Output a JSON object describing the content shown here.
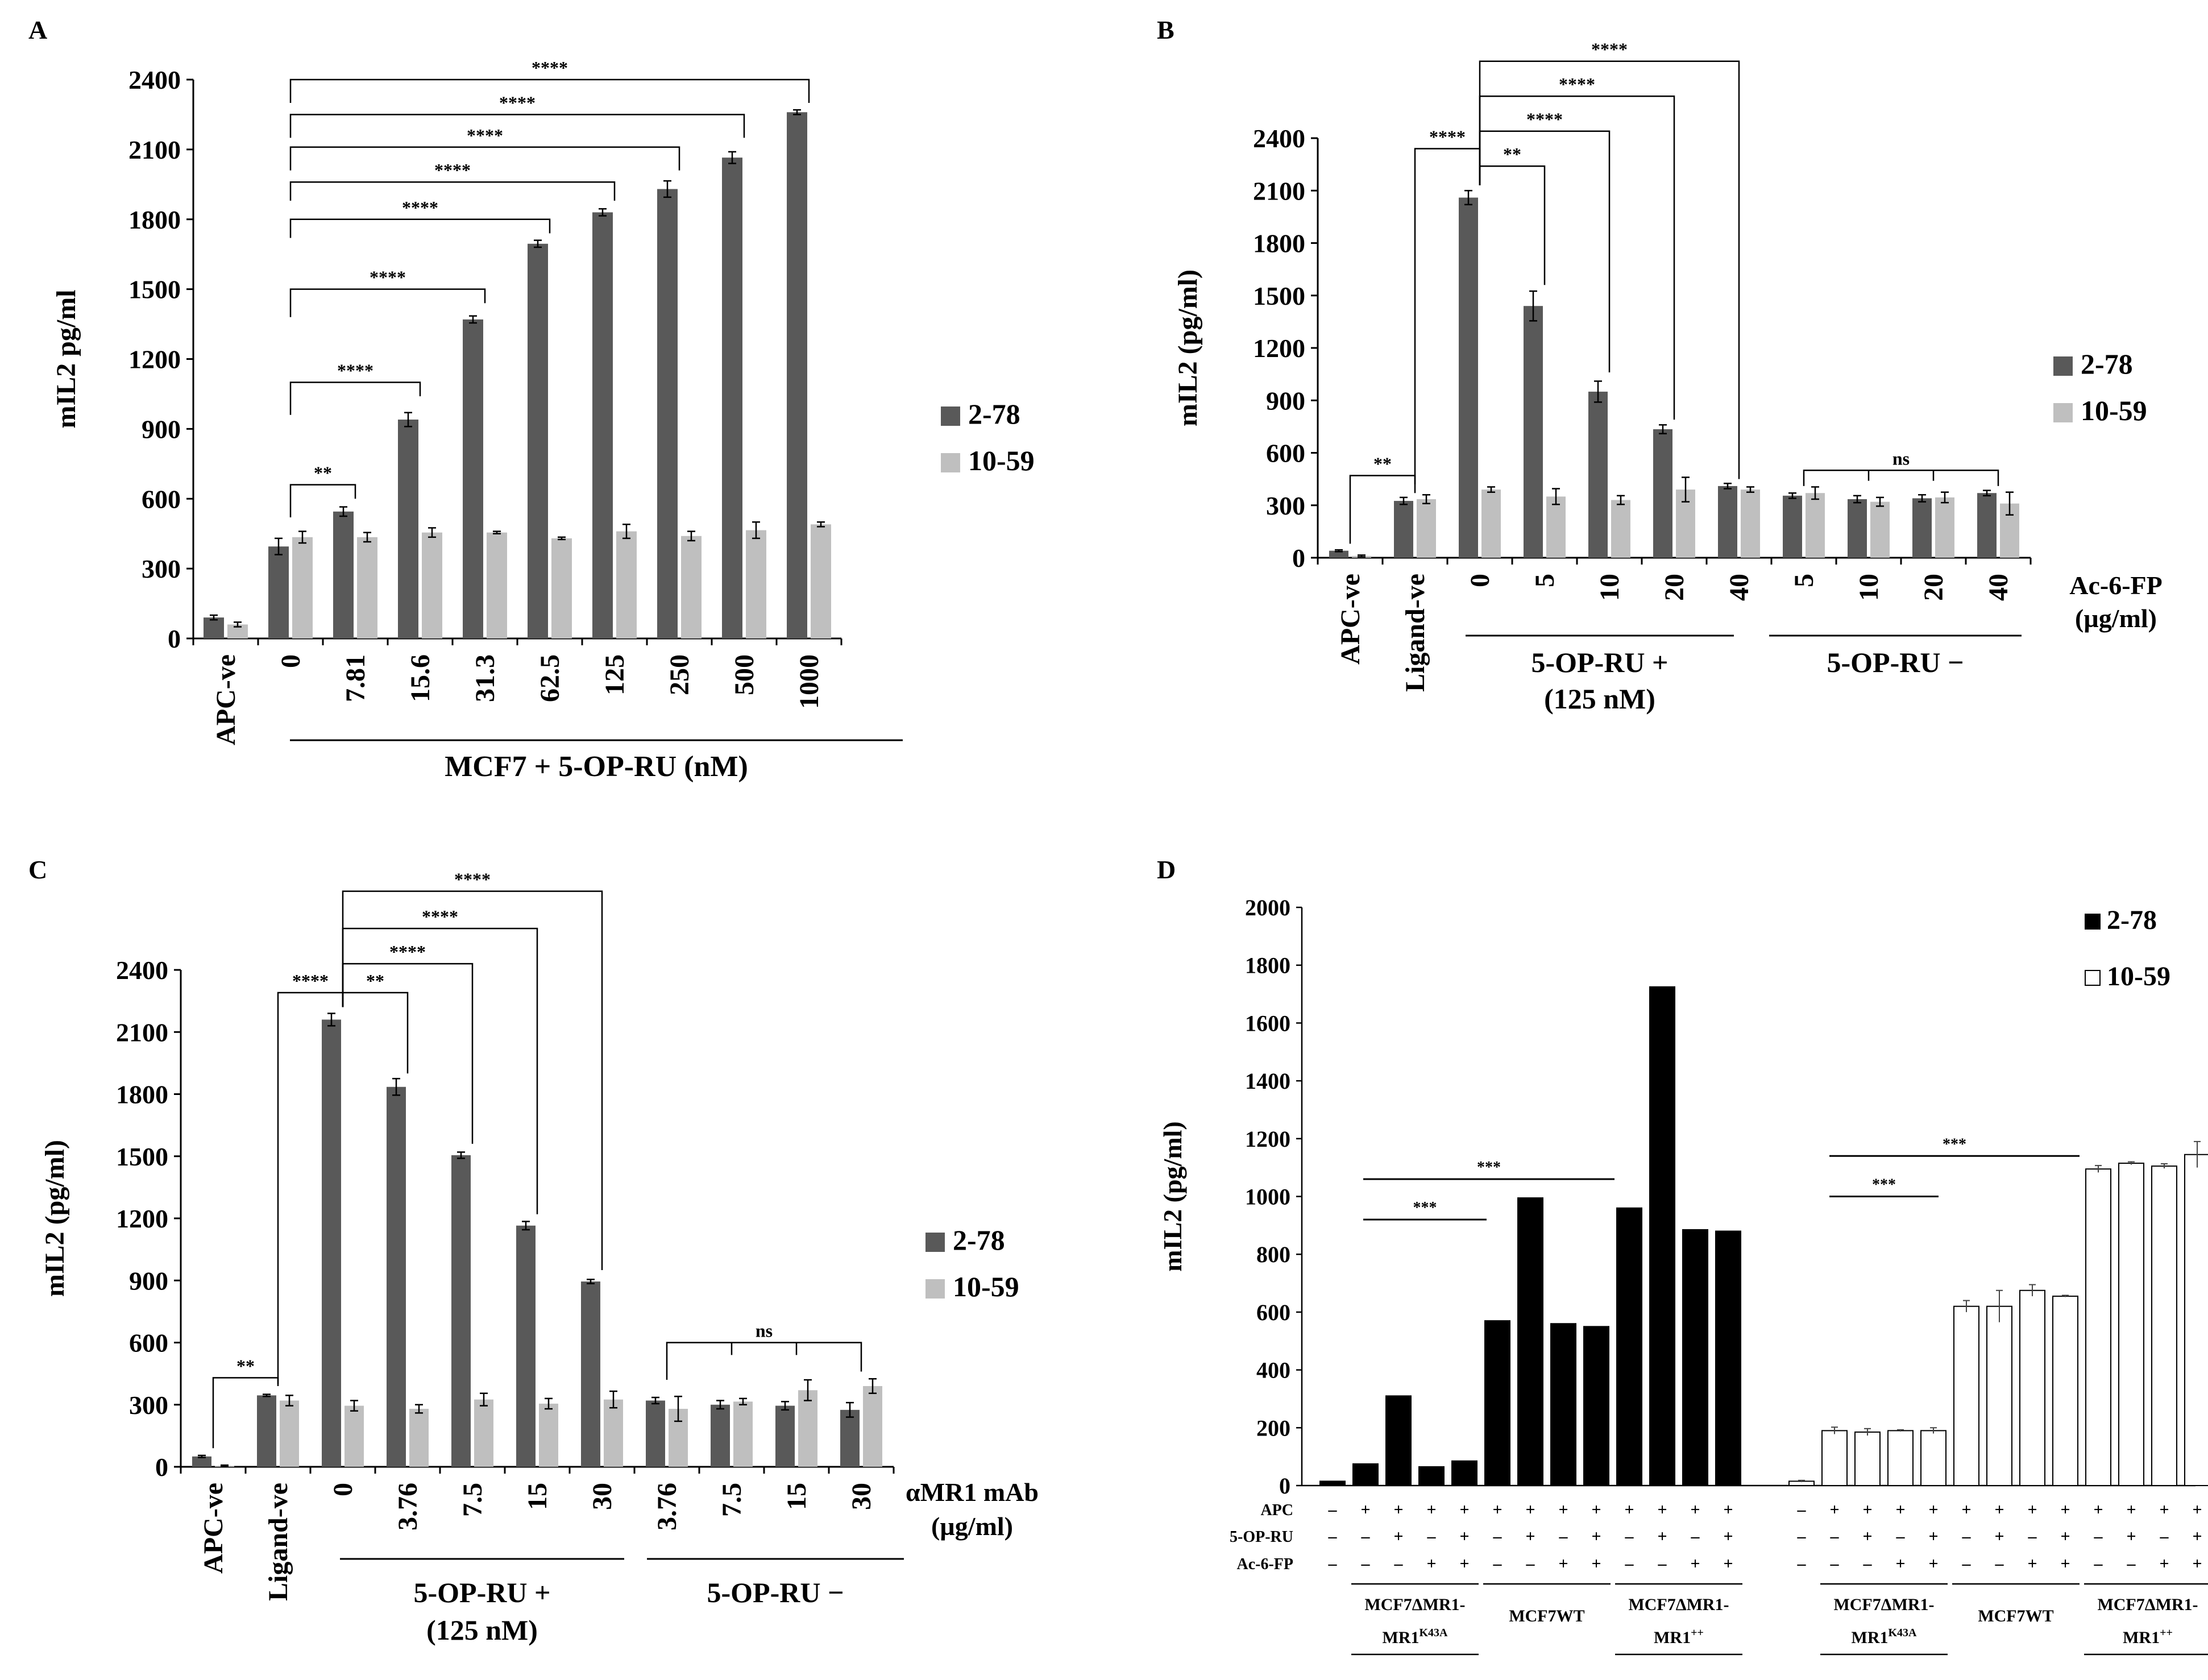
{
  "panels": {
    "A": {
      "letter": "A"
    },
    "B": {
      "letter": "B"
    },
    "C": {
      "letter": "C"
    },
    "D": {
      "letter": "D"
    }
  },
  "colors": {
    "dark_bar": "#595959",
    "light_bar": "#bfbfbf",
    "black_bar": "#000000",
    "white_bar": "#ffffff"
  },
  "chart_data": [
    {
      "panel": "A",
      "type": "bar",
      "ylabel": "mIL2 pg/ml",
      "ylim": [
        0,
        2400
      ],
      "yticks": [
        0,
        300,
        600,
        900,
        1200,
        1500,
        1800,
        2100,
        2400
      ],
      "categories": [
        "APC-ve",
        "0",
        "7.81",
        "15.6",
        "31.3",
        "62.5",
        "125",
        "250",
        "500",
        "1000"
      ],
      "group_label": "MCF7 + 5-OP-RU (nM)",
      "legend_position": "right",
      "series": [
        {
          "name": "2-78",
          "values": [
            90,
            395,
            545,
            940,
            1370,
            1695,
            1830,
            1930,
            2065,
            2260
          ],
          "errors": [
            10,
            35,
            20,
            30,
            15,
            15,
            15,
            35,
            25,
            10
          ]
        },
        {
          "name": "10-59",
          "values": [
            60,
            435,
            435,
            455,
            455,
            430,
            460,
            440,
            465,
            490
          ],
          "errors": [
            10,
            25,
            20,
            20,
            5,
            5,
            30,
            20,
            35,
            10
          ]
        }
      ],
      "brackets": [
        {
          "from": "0",
          "to": "7.81",
          "label": "**"
        },
        {
          "from": "0",
          "to": "15.6",
          "label": "****"
        },
        {
          "from": "0",
          "to": "31.3",
          "label": "****"
        },
        {
          "from": "0",
          "to": "62.5",
          "label": "****"
        },
        {
          "from": "0",
          "to": "125",
          "label": "****"
        },
        {
          "from": "0",
          "to": "250",
          "label": "****"
        },
        {
          "from": "0",
          "to": "500",
          "label": "****"
        },
        {
          "from": "0",
          "to": "1000",
          "label": "****"
        }
      ]
    },
    {
      "panel": "B",
      "type": "bar",
      "ylabel": "mIL2 (pg/ml)",
      "ylim": [
        0,
        2400
      ],
      "yticks": [
        0,
        300,
        600,
        900,
        1200,
        1500,
        1800,
        2100,
        2400
      ],
      "categories": [
        "APC-ve",
        "Ligand-ve",
        "0",
        "5",
        "10",
        "20",
        "40",
        "5",
        "10",
        "20",
        "40"
      ],
      "group_labels": [
        {
          "lines": [
            "5-OP-RU +",
            "(125 nM)"
          ]
        },
        {
          "lines": [
            "5-OP-RU −"
          ]
        }
      ],
      "axis_note": [
        "Ac-6-FP",
        "(µg/ml)"
      ],
      "legend_position": "right",
      "series": [
        {
          "name": "2-78",
          "values": [
            40,
            325,
            2060,
            1440,
            950,
            735,
            410,
            355,
            335,
            340,
            370
          ],
          "errors": [
            5,
            20,
            40,
            85,
            60,
            25,
            15,
            15,
            20,
            20,
            15
          ]
        },
        {
          "name": "10-59",
          "values": [
            10,
            335,
            390,
            350,
            330,
            390,
            390,
            370,
            320,
            345,
            310
          ],
          "errors": [
            5,
            25,
            15,
            45,
            25,
            70,
            15,
            35,
            25,
            30,
            65
          ]
        }
      ],
      "brackets": [
        {
          "label": "**"
        },
        {
          "label": "****"
        },
        {
          "label": "**"
        },
        {
          "label": "****"
        },
        {
          "label": "****"
        },
        {
          "label": "****"
        },
        {
          "label": "ns"
        }
      ]
    },
    {
      "panel": "C",
      "type": "bar",
      "ylabel": "mIL2 (pg/ml)",
      "ylim": [
        0,
        2400
      ],
      "yticks": [
        0,
        300,
        600,
        900,
        1200,
        1500,
        1800,
        2100,
        2400
      ],
      "categories": [
        "APC-ve",
        "Ligand-ve",
        "0",
        "3.76",
        "7.5",
        "15",
        "30",
        "3.76",
        "7.5",
        "15",
        "30"
      ],
      "group_labels": [
        {
          "lines": [
            "5-OP-RU +",
            "(125 nM)"
          ]
        },
        {
          "lines": [
            "5-OP-RU −"
          ]
        }
      ],
      "axis_note": [
        "αMR1 mAb",
        "(µg/ml)"
      ],
      "legend_position": "right",
      "series": [
        {
          "name": "2-78",
          "values": [
            50,
            345,
            2160,
            1835,
            1505,
            1165,
            895,
            320,
            300,
            295,
            275
          ],
          "errors": [
            5,
            5,
            30,
            40,
            15,
            20,
            10,
            15,
            20,
            20,
            35
          ]
        },
        {
          "name": "10-59",
          "values": [
            5,
            320,
            295,
            280,
            325,
            305,
            325,
            280,
            315,
            370,
            390
          ],
          "errors": [
            3,
            25,
            25,
            20,
            30,
            25,
            40,
            60,
            15,
            50,
            35
          ]
        }
      ],
      "brackets": [
        {
          "label": "**"
        },
        {
          "label": "****"
        },
        {
          "label": "**"
        },
        {
          "label": "****"
        },
        {
          "label": "****"
        },
        {
          "label": "****"
        },
        {
          "label": "ns"
        }
      ]
    },
    {
      "panel": "D",
      "type": "bar",
      "ylabel": "mIL2 (pg/ml)",
      "ylim": [
        0,
        2000
      ],
      "yticks": [
        0,
        200,
        400,
        600,
        800,
        1000,
        1200,
        1400,
        1600,
        1800,
        2000
      ],
      "legend_position": "top-right",
      "row_labels": [
        "APC",
        "5-OP-RU",
        "Ac-6-FP"
      ],
      "columns": {
        "APC": [
          "–",
          "+",
          "+",
          "+",
          "+",
          "+",
          "+",
          "+",
          "+",
          "+",
          "+",
          "+",
          "+"
        ],
        "5-OP-RU": [
          "–",
          "–",
          "+",
          "–",
          "+",
          "–",
          "+",
          "–",
          "+",
          "–",
          "+",
          "–",
          "+"
        ],
        "Ac-6-FP": [
          "–",
          "–",
          "–",
          "+",
          "+",
          "–",
          "–",
          "+",
          "+",
          "–",
          "–",
          "+",
          "+"
        ]
      },
      "cell_groups": [
        {
          "name": "MCF7ΔMR1-",
          "sub": "MR1",
          "sup": "K43A"
        },
        {
          "name": "MCF7WT",
          "sub": "",
          "sup": ""
        },
        {
          "name": "MCF7ΔMR1-",
          "sub": "MR1",
          "sup": "++"
        }
      ],
      "series": [
        {
          "name": "2-78",
          "values": [
            15,
            75,
            310,
            65,
            85,
            570,
            995,
            560,
            550,
            960,
            1725,
            885,
            880
          ],
          "errors": [
            0,
            0,
            0,
            0,
            0,
            0,
            0,
            0,
            0,
            0,
            0,
            0,
            0
          ]
        },
        {
          "name": "10-59",
          "values": [
            15,
            190,
            185,
            190,
            190,
            620,
            620,
            675,
            655,
            1095,
            1115,
            1105,
            1145
          ],
          "errors": [
            3,
            12,
            12,
            3,
            10,
            20,
            55,
            20,
            3,
            12,
            5,
            8,
            45
          ]
        }
      ],
      "significance": [
        {
          "label": "***"
        },
        {
          "label": "***"
        },
        {
          "label": "***"
        },
        {
          "label": "***"
        }
      ]
    }
  ]
}
